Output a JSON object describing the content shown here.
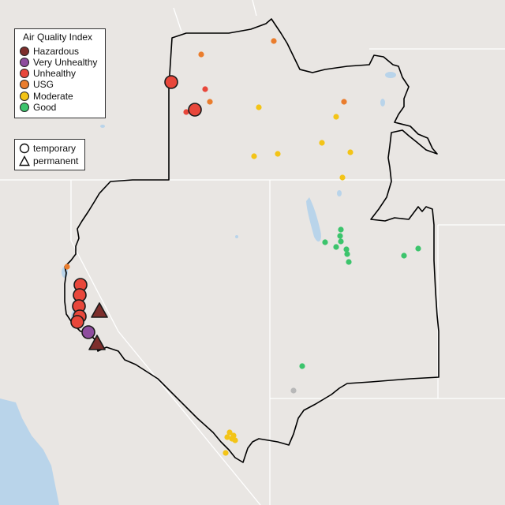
{
  "legend": {
    "title": "Air Quality Index",
    "categories": [
      {
        "label": "Hazardous",
        "color": "#7d2e2c"
      },
      {
        "label": "Very Unhealthy",
        "color": "#8e4d9e"
      },
      {
        "label": "Unhealthy",
        "color": "#e8473b"
      },
      {
        "label": "USG",
        "color": "#ea7d2d"
      },
      {
        "label": "Moderate",
        "color": "#f3c417"
      },
      {
        "label": "Good",
        "color": "#3cc46c"
      }
    ]
  },
  "type_legend": {
    "temporary": "temporary",
    "permanent": "permanent"
  },
  "colors": {
    "background": "#e9e6e3",
    "water": "#b9d4ea",
    "border": "#000000",
    "state_line": "#ffffff",
    "nodata": "#b8b8b8"
  }
}
